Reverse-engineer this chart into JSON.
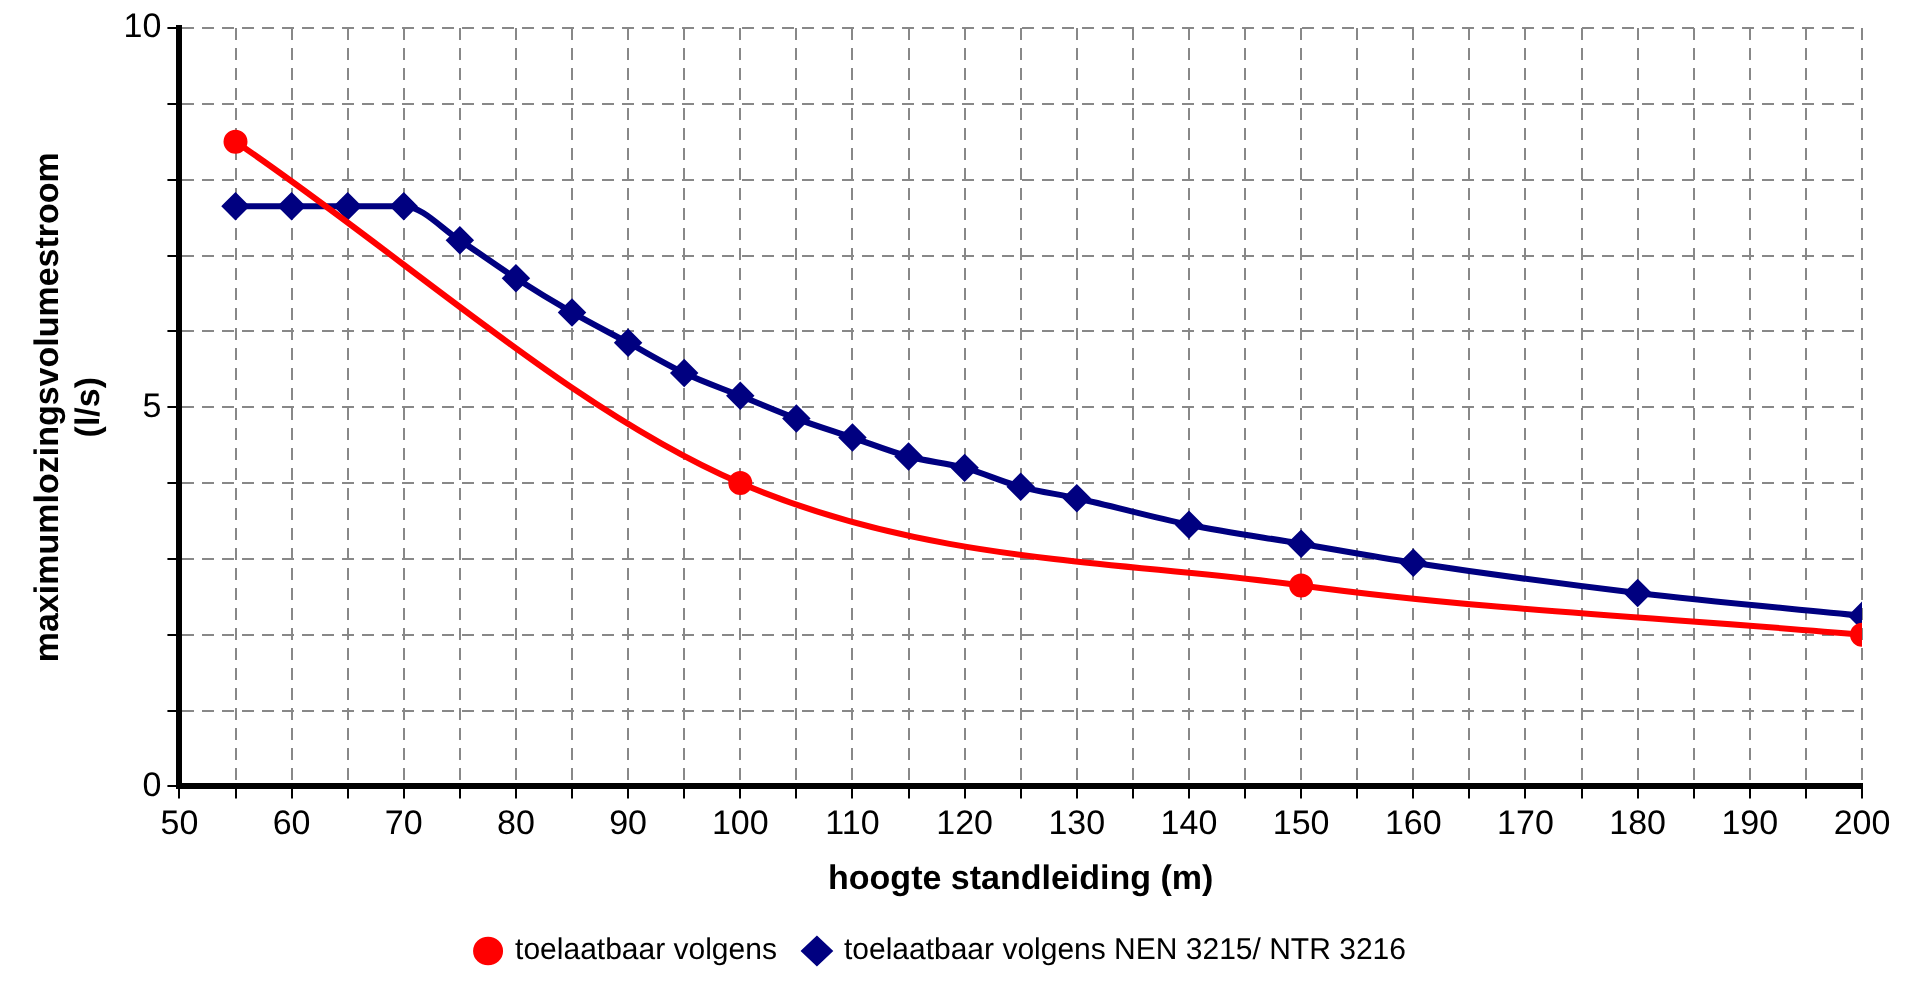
{
  "chart_data": {
    "type": "line",
    "xlabel": "hoogte standleiding (m)",
    "ylabel": "maximumlozingsvolumestroom\n(l/s)",
    "xlim": [
      50,
      200
    ],
    "ylim": [
      0,
      10
    ],
    "xticks": [
      50,
      {
        "value": 55,
        "label": null
      },
      60,
      {
        "value": 65,
        "label": null
      },
      70,
      {
        "value": 75,
        "label": null
      },
      80,
      {
        "value": 85,
        "label": null
      },
      90,
      {
        "value": 95,
        "label": null
      },
      100,
      {
        "value": 105,
        "label": null
      },
      110,
      {
        "value": 115,
        "label": null
      },
      120,
      {
        "value": 125,
        "label": null
      },
      130,
      {
        "value": 135,
        "label": null
      },
      140,
      {
        "value": 145,
        "label": null
      },
      150,
      {
        "value": 155,
        "label": null
      },
      160,
      {
        "value": 165,
        "label": null
      },
      170,
      {
        "value": 175,
        "label": null
      },
      180,
      {
        "value": 185,
        "label": null
      },
      190,
      {
        "value": 195,
        "label": null
      },
      200
    ],
    "yticks": [
      0,
      {
        "value": 1,
        "label": null
      },
      {
        "value": 2,
        "label": null
      },
      {
        "value": 3,
        "label": null
      },
      {
        "value": 4,
        "label": null
      },
      5,
      {
        "value": 6,
        "label": null
      },
      {
        "value": 7,
        "label": null
      },
      {
        "value": 8,
        "label": null
      },
      {
        "value": 9,
        "label": null
      },
      10
    ],
    "grid": true,
    "legend": "bottom",
    "line_style": "solid",
    "series": [
      {
        "name": "toelaatbaar volgens",
        "color": "#ff0000",
        "marker": "circle",
        "x": [
          55,
          100,
          150,
          200
        ],
        "values": [
          8.5,
          4.0,
          2.65,
          2.0
        ]
      },
      {
        "name": "toelaatbaar volgens NEN 3215/ NTR 3216",
        "color": "#000080",
        "marker": "diamond",
        "x": [
          55,
          60,
          65,
          70,
          75,
          80,
          85,
          90,
          95,
          100,
          105,
          110,
          115,
          120,
          125,
          130,
          140,
          150,
          160,
          180,
          200
        ],
        "values": [
          7.65,
          7.65,
          7.65,
          7.65,
          7.2,
          6.7,
          6.25,
          5.85,
          5.45,
          5.15,
          4.85,
          4.6,
          4.35,
          4.2,
          3.95,
          3.8,
          3.45,
          3.2,
          2.95,
          2.55,
          2.25
        ]
      }
    ]
  }
}
